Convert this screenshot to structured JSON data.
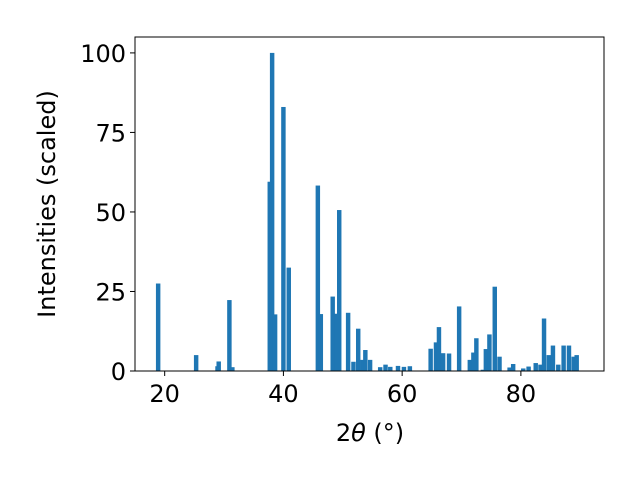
{
  "chart_data": {
    "type": "bar",
    "title": "",
    "xlabel_main": "2",
    "xlabel_theta": "θ",
    "xlabel_unit": " (°)",
    "ylabel": "Intensities (scaled)",
    "xlim": [
      15,
      94
    ],
    "ylim": [
      0,
      105
    ],
    "xticks": [
      20,
      40,
      60,
      80
    ],
    "yticks": [
      0,
      25,
      50,
      75,
      100
    ],
    "bar_color": "#1f77b4",
    "bar_width": 0.75,
    "x": [
      18.9,
      25.3,
      28.9,
      29.1,
      30.9,
      31.4,
      37.7,
      38.1,
      38.6,
      40.0,
      40.9,
      45.8,
      46.3,
      48.3,
      48.9,
      49.4,
      50.9,
      51.8,
      52.6,
      53.3,
      53.8,
      54.6,
      56.3,
      57.2,
      58.0,
      59.3,
      60.3,
      61.3,
      64.8,
      65.7,
      66.2,
      66.9,
      67.9,
      69.6,
      71.4,
      72.0,
      72.5,
      73.6,
      74.1,
      74.7,
      75.6,
      76.4,
      78.1,
      78.7,
      80.4,
      81.3,
      82.5,
      83.3,
      83.9,
      84.7,
      85.4,
      86.3,
      87.2,
      88.1,
      88.9,
      89.4
    ],
    "values": [
      27.5,
      5.0,
      1.5,
      3.0,
      22.3,
      1.2,
      59.5,
      100.0,
      17.8,
      83.0,
      32.5,
      58.3,
      17.9,
      23.4,
      18.0,
      50.6,
      18.3,
      2.9,
      13.3,
      3.5,
      6.6,
      3.5,
      1.2,
      2.0,
      1.3,
      1.6,
      1.3,
      1.5,
      7.0,
      9.0,
      13.8,
      5.6,
      5.5,
      20.3,
      3.5,
      5.8,
      10.3,
      0.4,
      6.9,
      11.5,
      26.5,
      4.5,
      1.1,
      2.2,
      0.8,
      1.4,
      2.5,
      2.0,
      16.5,
      5.0,
      8.0,
      2.0,
      8.0,
      8.0,
      4.5,
      5.0
    ]
  }
}
